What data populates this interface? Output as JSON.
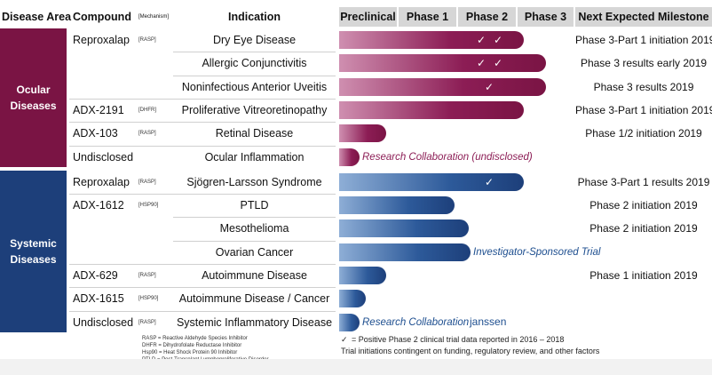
{
  "header": {
    "disease_area": "Disease Area",
    "compound": "Compound",
    "mechanism": "[Mechanism]",
    "indication": "Indication",
    "phases": [
      "Preclinical",
      "Phase 1",
      "Phase 2",
      "Phase 3"
    ],
    "milestone": "Next Expected Milestone"
  },
  "groups": [
    {
      "name": "Ocular Diseases",
      "rows": [
        {
          "compound": "Reproxalap",
          "mechanism": "[RASP]",
          "indication": "Dry Eye Disease",
          "checks": [
            "✓",
            "✓"
          ],
          "milestone": "Phase 3-Part 1 initiation 2019"
        },
        {
          "indication": "Allergic Conjunctivitis",
          "checks": [
            "✓",
            "✓"
          ],
          "milestone": "Phase 3 results early 2019"
        },
        {
          "indication": "Noninfectious Anterior Uveitis",
          "checks": [
            "✓"
          ],
          "milestone": "Phase 3 results 2019"
        },
        {
          "compound": "ADX-2191",
          "mechanism": "[DHFR]",
          "indication": "Proliferative Vitreoretinopathy",
          "milestone": "Phase 3-Part 1 initiation 2019"
        },
        {
          "compound": "ADX-103",
          "mechanism": "[RASP]",
          "indication": "Retinal Disease",
          "milestone": "Phase 1/2 initiation 2019"
        },
        {
          "compound": "Undisclosed",
          "indication": "Ocular Inflammation",
          "bar_label": "Research Collaboration (undisclosed)"
        }
      ]
    },
    {
      "name": "Systemic Diseases",
      "rows": [
        {
          "compound": "Reproxalap",
          "mechanism": "[RASP]",
          "indication": "Sjögren-Larsson Syndrome",
          "checks": [
            "✓"
          ],
          "milestone": "Phase 3-Part 1 results 2019"
        },
        {
          "compound": "ADX-1612",
          "mechanism": "[HSP90]",
          "indication": "PTLD",
          "milestone": "Phase 2 initiation 2019"
        },
        {
          "indication": "Mesothelioma",
          "checks": [
            "✓"
          ],
          "milestone": "Phase 2 initiation 2019"
        },
        {
          "indication": "Ovarian Cancer",
          "bar_label": "Investigator-Sponsored Trial"
        },
        {
          "compound": "ADX-629",
          "mechanism": "[RASP]",
          "indication": "Autoimmune Disease",
          "milestone": "Phase 1 initiation 2019"
        },
        {
          "compound": "ADX-1615",
          "mechanism": "[HSP90]",
          "indication": "Autoimmune Disease / Cancer"
        },
        {
          "compound": "Undisclosed",
          "mechanism": "[RASP]",
          "indication": "Systemic Inflammatory Disease",
          "bar_label": "Research Collaboration",
          "partner": "janssen"
        }
      ]
    }
  ],
  "footnotes": {
    "abbreviations": [
      "RASP = Reactive Aldehyde Species Inhibitor",
      "DHFR = Dihydrofolate Reductase Inhibitor",
      "Hsp90 = Heat Shock Protein 90 Inhibitor",
      "PTLD = Post-Transplant Lymphoproliferative Disorder"
    ],
    "check_symbol": "✓",
    "check_legend": "= Positive Phase 2 clinical trial data reported in 2016 – 2018",
    "note": "Trial initiations contingent on funding, regulatory review, and other factors"
  }
}
